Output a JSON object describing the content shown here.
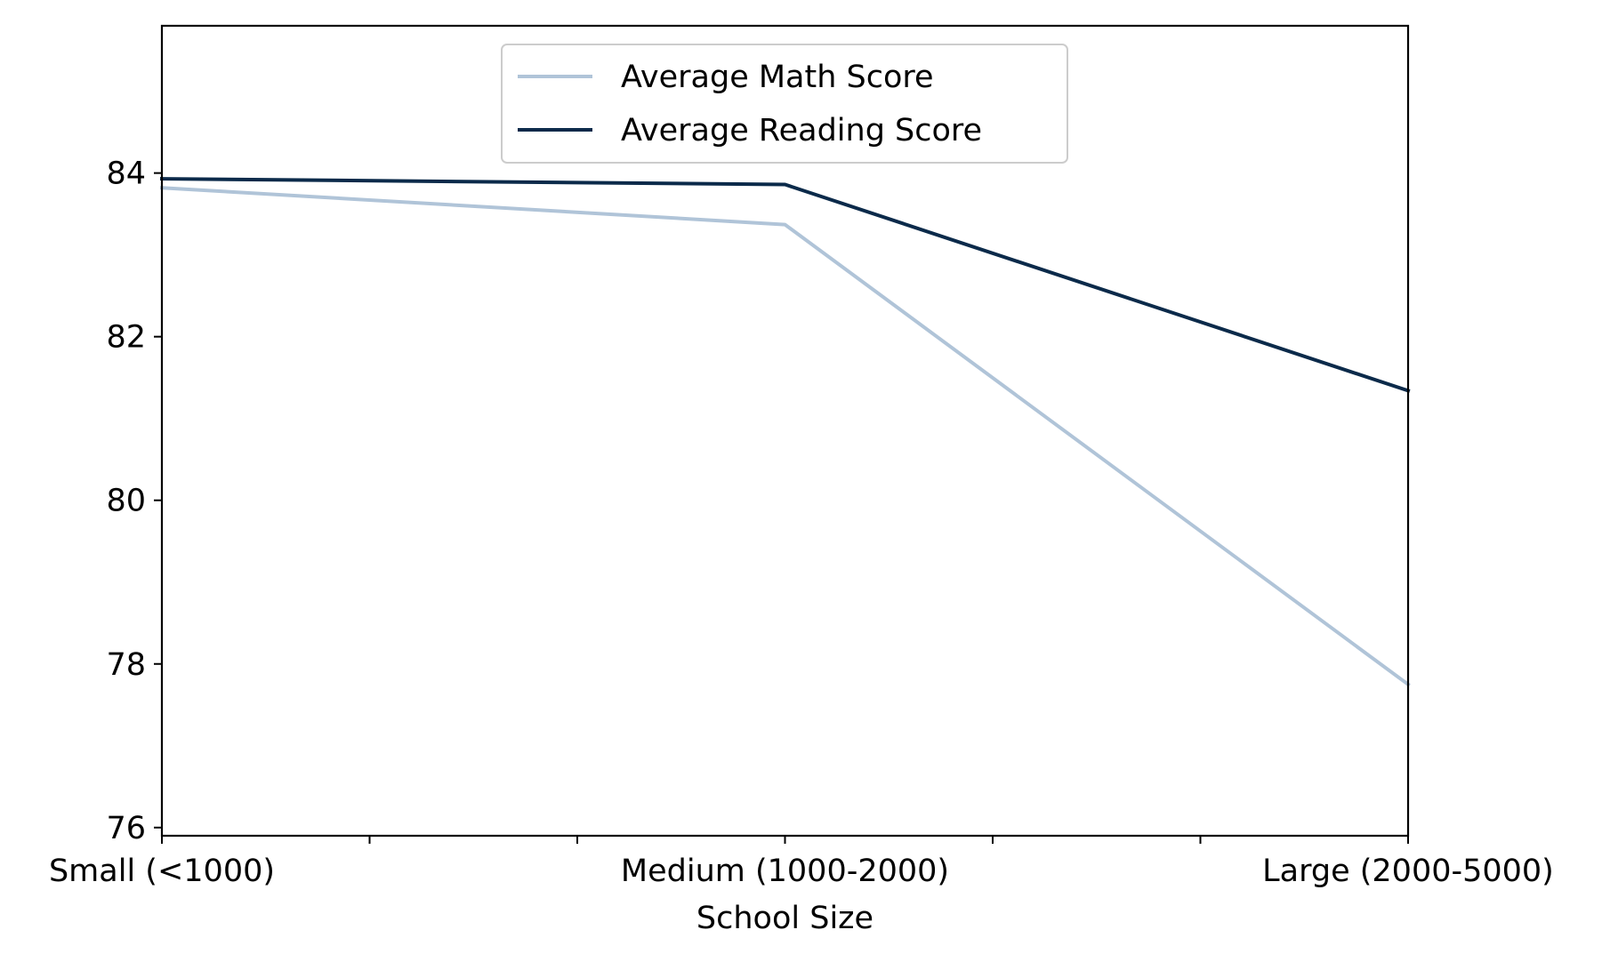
{
  "chart_data": {
    "type": "line",
    "categories": [
      "Small (<1000)",
      "Medium (1000-2000)",
      "Large (2000-5000)"
    ],
    "series": [
      {
        "name": "Average Math Score",
        "values": [
          83.82,
          83.37,
          77.75
        ],
        "color": "#b0c4d8"
      },
      {
        "name": "Average Reading Score",
        "values": [
          83.93,
          83.86,
          81.34
        ],
        "color": "#0b2a4a"
      }
    ],
    "xlabel": "School Size",
    "ylabel": "",
    "ylim": [
      75.9,
      85.8
    ],
    "yticks": [
      "76",
      "78",
      "80",
      "82",
      "84"
    ],
    "legend_position": "upper-center",
    "grid": false
  }
}
